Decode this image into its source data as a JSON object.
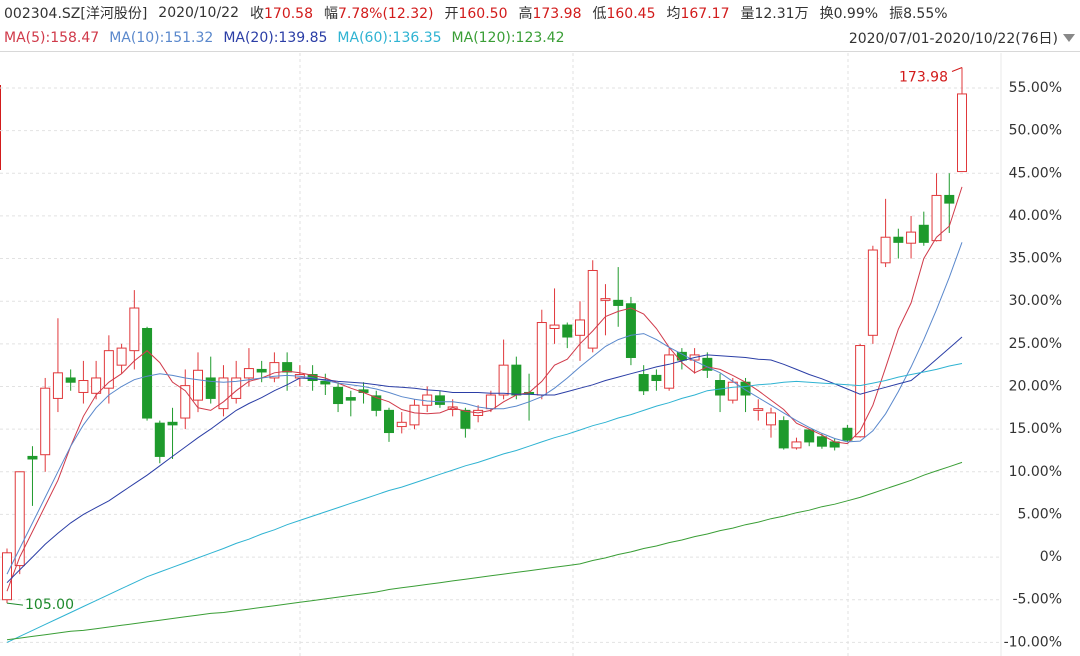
{
  "header": {
    "code": "002304.SZ[洋河股份]",
    "date": "2020/10/22",
    "fields": [
      {
        "label": "收",
        "value": "170.58",
        "color": "#d21b1b"
      },
      {
        "label": "幅",
        "value": "7.78%(12.32)",
        "color": "#d21b1b"
      },
      {
        "label": "开",
        "value": "160.50",
        "color": "#d21b1b"
      },
      {
        "label": "高",
        "value": "173.98",
        "color": "#d21b1b"
      },
      {
        "label": "低",
        "value": "160.45",
        "color": "#d21b1b"
      },
      {
        "label": "均",
        "value": "167.17",
        "color": "#d21b1b"
      },
      {
        "label": "量",
        "value": "12.31万",
        "color": "#333333"
      },
      {
        "label": "换",
        "value": "0.99%",
        "color": "#333333"
      },
      {
        "label": "振",
        "value": "8.55%",
        "color": "#333333"
      }
    ],
    "range": "2020/07/01-2020/10/22(76日)"
  },
  "chart_data": {
    "type": "candlestick",
    "up_color": "#e0383b",
    "down_color": "#1e9a2c",
    "open": [
      -5,
      -1,
      11.8,
      12,
      18.6,
      21,
      19.3,
      19.2,
      19.8,
      22.5,
      24.2,
      26.8,
      15.7,
      15.8,
      16.3,
      18.4,
      21,
      17.4,
      18.6,
      21,
      22,
      21,
      22.8,
      21,
      21.4,
      20.6,
      19.9,
      18.7,
      19.6,
      18.9,
      17.2,
      15.3,
      15.5,
      17.8,
      18.9,
      17.3,
      17.2,
      16.6,
      17.4,
      19,
      22.5,
      19.3,
      19,
      26.8,
      27.2,
      26,
      24.5,
      30.1,
      30.1,
      29.7,
      21.4,
      21.3,
      19.8,
      24,
      23.1,
      23.3,
      20.7,
      18.4,
      20.5,
      17.2,
      15.5,
      16,
      12.8,
      14.9,
      14.1,
      13.5,
      15.1,
      14.1,
      26,
      34.5,
      37.5,
      36.8,
      38.9,
      37.1,
      42.4,
      45.2
    ],
    "high": [
      1,
      10,
      13,
      21,
      28,
      22,
      23,
      23,
      26,
      25,
      31.3,
      27,
      16,
      17.5,
      22,
      24,
      23.5,
      22.5,
      23,
      24.5,
      23,
      24,
      24,
      22.5,
      22.5,
      21.5,
      20.5,
      19.5,
      20.5,
      19.5,
      17.5,
      17,
      18.5,
      20,
      19.5,
      18.5,
      17.5,
      17.8,
      19.5,
      25.5,
      23.5,
      21.5,
      29,
      31.5,
      27.5,
      30,
      34.8,
      32,
      34,
      30.5,
      22.5,
      22,
      24.5,
      24.5,
      24.5,
      24,
      21.5,
      21,
      21,
      18.5,
      17.5,
      16.5,
      14,
      15,
      14.5,
      13.9,
      15.5,
      25,
      36.5,
      42,
      38.5,
      40,
      40.5,
      45,
      45,
      57.4
    ],
    "low": [
      -5.4,
      -2,
      6,
      10,
      17,
      19.5,
      18,
      18.5,
      18,
      21.5,
      22,
      16,
      11,
      11.5,
      15,
      17,
      18,
      16.5,
      18,
      20,
      20.5,
      20.5,
      19.5,
      20,
      19.5,
      19,
      17,
      16.5,
      18,
      16.5,
      13.5,
      14.5,
      15,
      17,
      17.5,
      16.5,
      14,
      15.8,
      17,
      18.5,
      18.5,
      16,
      18.5,
      25,
      24.5,
      23,
      24,
      26,
      27,
      22.5,
      19,
      19.5,
      19.5,
      22,
      21.5,
      21,
      17,
      18,
      17,
      16,
      14,
      12.6,
      12.6,
      13,
      12.7,
      12.5,
      13.5,
      14,
      25,
      34,
      35,
      35,
      36.5,
      37,
      38,
      45.2
    ],
    "close": [
      0.5,
      10,
      11.5,
      19.8,
      21.6,
      20.5,
      20.7,
      21,
      24.2,
      24.5,
      29.2,
      16.3,
      11.8,
      15.5,
      20.1,
      21.9,
      18.6,
      21,
      21,
      22.1,
      21.7,
      22.8,
      21.7,
      21.4,
      20.7,
      20.3,
      18,
      18.4,
      19.3,
      17.2,
      14.6,
      15.8,
      17.8,
      19,
      17.9,
      17.6,
      15.1,
      17.2,
      19,
      22.5,
      19,
      19.1,
      27.5,
      27.2,
      25.8,
      27.8,
      33.6,
      30.3,
      29.5,
      23.4,
      19.5,
      20.7,
      23.7,
      23.1,
      23.7,
      21.9,
      19,
      20.5,
      19,
      17.4,
      16.9,
      12.8,
      13.5,
      13.5,
      13,
      12.9,
      13.7,
      24.8,
      36,
      37.5,
      36.9,
      38.1,
      36.9,
      42.4,
      41.5,
      54.3
    ],
    "series": [
      {
        "name": "MA(5):158.47",
        "color": "#d03a4a",
        "values": [
          -4,
          0,
          3,
          6,
          9,
          13,
          16.5,
          19,
          20.5,
          21.5,
          23,
          24.2,
          22.8,
          20.5,
          19.5,
          17.5,
          17.2,
          18.2,
          19.5,
          20.6,
          21,
          21.6,
          21.8,
          21.6,
          21.3,
          21,
          20.4,
          19.8,
          19.3,
          18.7,
          18.2,
          17.3,
          16.9,
          16.8,
          16.9,
          17.5,
          17.1,
          16.9,
          17.2,
          18.2,
          19,
          19.3,
          20.6,
          22.5,
          23.2,
          25,
          26.5,
          28.2,
          28.8,
          29.2,
          28.5,
          26.8,
          24.6,
          22.8,
          21.6,
          22.3,
          22,
          21.3,
          20.5,
          19.5,
          18.4,
          17.3,
          15.7,
          15,
          14.3,
          13.5,
          13.3,
          14.8,
          17.8,
          22.2,
          26.7,
          29.8,
          35,
          37.5,
          38.8,
          43.4
        ]
      },
      {
        "name": "MA(10):151.32",
        "color": "#5a88cc",
        "values": [
          -2,
          1,
          4,
          7,
          10,
          13,
          15.5,
          17.5,
          19,
          20,
          20.8,
          21.2,
          21.5,
          21.3,
          21,
          20.8,
          20.6,
          20.5,
          20.6,
          20.8,
          21,
          21.2,
          21.3,
          21.2,
          21,
          20.7,
          20.4,
          20.2,
          20,
          19.7,
          19.3,
          18.8,
          18.5,
          18.3,
          18.2,
          18.2,
          18,
          17.6,
          17.4,
          17.4,
          17.7,
          18.2,
          18.8,
          19.8,
          21,
          22.3,
          23.5,
          24.7,
          25.5,
          26,
          26.2,
          25.5,
          24.6,
          23.8,
          23,
          22.3,
          21.6,
          20.6,
          19.6,
          18.7,
          17.8,
          16.9,
          16,
          15.2,
          14.5,
          13.9,
          13.5,
          13.6,
          14.8,
          16.8,
          19.4,
          22.3,
          25.5,
          29,
          32.8,
          36.9
        ]
      },
      {
        "name": "MA(20):139.85",
        "color": "#2b3ea6",
        "values": [
          -3,
          -1.5,
          0,
          1.5,
          2.8,
          4,
          5,
          5.8,
          6.6,
          7.6,
          8.6,
          9.6,
          10.7,
          11.8,
          12.9,
          14,
          15,
          16.1,
          17.2,
          18,
          18.7,
          19.5,
          20.2,
          21,
          20.9,
          20.8,
          20.6,
          20.5,
          20.4,
          20.2,
          20,
          19.9,
          19.8,
          19.6,
          19.5,
          19.3,
          19.3,
          19.3,
          19.2,
          19.2,
          19.1,
          19.1,
          19,
          19,
          19.4,
          19.8,
          20.2,
          20.7,
          21.1,
          21.5,
          21.9,
          22.3,
          22.6,
          23,
          23.4,
          23.7,
          23.6,
          23.5,
          23.4,
          23.2,
          23.1,
          22.6,
          22,
          21.4,
          20.9,
          20.3,
          19.7,
          19.1,
          19.5,
          19.9,
          20.3,
          20.7,
          21.9,
          23.2,
          24.5,
          25.8
        ]
      },
      {
        "name": "MA(60):136.35",
        "color": "#2fb3d2",
        "values": [
          -10,
          -9.3,
          -8.6,
          -7.9,
          -7.2,
          -6.5,
          -5.8,
          -5.1,
          -4.4,
          -3.7,
          -3,
          -2.3,
          -1.75,
          -1.2,
          -0.65,
          -0.1,
          0.45,
          1,
          1.6,
          2.1,
          2.7,
          3.2,
          3.8,
          4.3,
          4.8,
          5.3,
          5.8,
          6.3,
          6.8,
          7.3,
          7.8,
          8.2,
          8.7,
          9.2,
          9.7,
          10.2,
          10.7,
          11.1,
          11.6,
          12.1,
          12.5,
          13,
          13.5,
          14,
          14.4,
          14.9,
          15.4,
          15.8,
          16.3,
          16.7,
          17.2,
          17.7,
          18.1,
          18.6,
          19,
          19.5,
          19.7,
          19.9,
          20,
          20.2,
          20.3,
          20.5,
          20.6,
          20.5,
          20.4,
          20.3,
          20.2,
          20.1,
          20.4,
          20.7,
          21.1,
          21.4,
          21.7,
          22,
          22.4,
          22.7
        ]
      },
      {
        "name": "MA(120):123.42",
        "color": "#3a9e36",
        "values": [
          -9.7,
          -9.5,
          -9.3,
          -9.1,
          -8.9,
          -8.7,
          -8.6,
          -8.4,
          -8.2,
          -8,
          -7.8,
          -7.6,
          -7.4,
          -7.2,
          -7,
          -6.8,
          -6.6,
          -6.5,
          -6.3,
          -6.1,
          -5.9,
          -5.7,
          -5.5,
          -5.3,
          -5.1,
          -4.9,
          -4.7,
          -4.5,
          -4.3,
          -4.1,
          -3.8,
          -3.6,
          -3.4,
          -3.2,
          -3,
          -2.8,
          -2.6,
          -2.4,
          -2.2,
          -2,
          -1.8,
          -1.6,
          -1.4,
          -1.2,
          -1,
          -0.8,
          -0.4,
          -0.1,
          0.3,
          0.6,
          1,
          1.3,
          1.7,
          2,
          2.4,
          2.7,
          3.1,
          3.4,
          3.8,
          4.1,
          4.5,
          4.8,
          5.2,
          5.5,
          5.9,
          6.2,
          6.6,
          7,
          7.5,
          8,
          8.5,
          9,
          9.6,
          10.1,
          10.6,
          11.1
        ]
      }
    ],
    "ylim": [
      -11.6,
      59.1
    ],
    "yticks": [
      {
        "value": -10,
        "label": "-10.00%"
      },
      {
        "value": -5,
        "label": "-5.00%"
      },
      {
        "value": 0,
        "label": "0%"
      },
      {
        "value": 5,
        "label": "5.00%"
      },
      {
        "value": 10,
        "label": "10.00%"
      },
      {
        "value": 15,
        "label": "15.00%"
      },
      {
        "value": 20,
        "label": "20.00%"
      },
      {
        "value": 25,
        "label": "25.00%"
      },
      {
        "value": 30,
        "label": "30.00%"
      },
      {
        "value": 35,
        "label": "35.00%"
      },
      {
        "value": 40,
        "label": "40.00%"
      },
      {
        "value": 45,
        "label": "45.00%"
      },
      {
        "value": 50,
        "label": "50.00%"
      },
      {
        "value": 55,
        "label": "55.00%"
      }
    ],
    "grid": true,
    "annotations": [
      {
        "text": "173.98",
        "color": "#d21b1b"
      },
      {
        "text": "105.00",
        "color": "#1e8a2c"
      }
    ]
  }
}
